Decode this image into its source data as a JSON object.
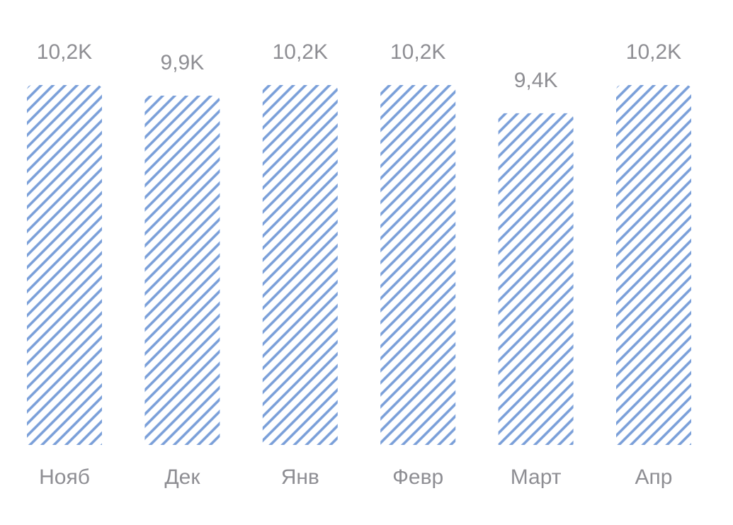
{
  "chart_data": {
    "type": "bar",
    "categories": [
      "Нояб",
      "Дек",
      "Янв",
      "Февр",
      "Март",
      "Апр"
    ],
    "values": [
      10.2,
      9.9,
      10.2,
      10.2,
      9.4,
      10.2
    ],
    "value_labels": [
      "10,2K",
      "9,9K",
      "10,2K",
      "10,2K",
      "9,4K",
      "10,2K"
    ],
    "color": "#7a9fd9"
  }
}
